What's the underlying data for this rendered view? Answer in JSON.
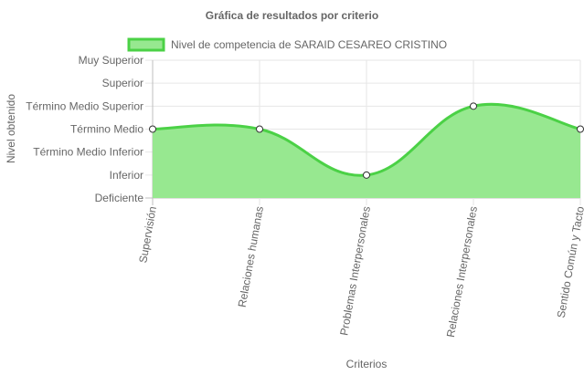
{
  "chart_data": {
    "type": "area",
    "title": "Gráfica de resultados por criterio",
    "xlabel": "Criterios",
    "ylabel": "Nivel obtenido",
    "y_levels": [
      "Deficiente",
      "Inferior",
      "Término Medio Inferior",
      "Término Medio",
      "Término Medio Superior",
      "Superior",
      "Muy Superior"
    ],
    "categories": [
      "Supervisión",
      "Relaciones humanas",
      "Problemas Interpersonales",
      "Relaciones Interpersonales",
      "Sentido Común y Tacto"
    ],
    "series": [
      {
        "name": "Nivel de competencia de SARAID CESAREO CRISTINO",
        "values": [
          3,
          3,
          1,
          4,
          3
        ],
        "value_labels": [
          "Término Medio",
          "Término Medio",
          "Inferior",
          "Término Medio Superior",
          "Término Medio"
        ]
      }
    ],
    "ylim": [
      0,
      6
    ],
    "grid": true,
    "legend_position": "top",
    "colors": {
      "line": "#4bd146",
      "fill": "#97e890",
      "grid": "#e6e6e6",
      "point_fill": "#ffffff",
      "point_stroke": "#333333"
    }
  }
}
